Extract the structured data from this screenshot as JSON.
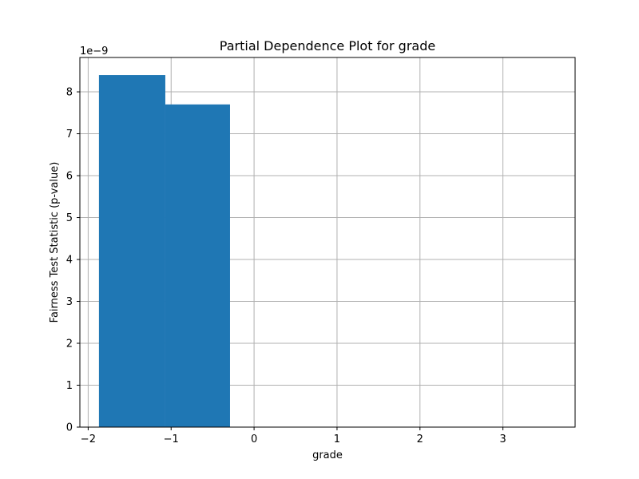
{
  "chart_data": {
    "type": "bar",
    "title": "Partial Dependence Plot for grade",
    "xlabel": "grade",
    "ylabel": "Fairness Test Statistic (p-value)",
    "y_scale_label": "1e−9",
    "xlim": [
      -2.1,
      3.87
    ],
    "ylim": [
      0,
      8.82
    ],
    "grid": true,
    "legend": "none",
    "bar_color": "#1f77b4",
    "x_ticks": [
      {
        "value": -2,
        "label": "−2"
      },
      {
        "value": -1,
        "label": "−1"
      },
      {
        "value": 0,
        "label": "0"
      },
      {
        "value": 1,
        "label": "1"
      },
      {
        "value": 2,
        "label": "2"
      },
      {
        "value": 3,
        "label": "3"
      }
    ],
    "y_ticks": [
      {
        "value": 0,
        "label": "0"
      },
      {
        "value": 1,
        "label": "1"
      },
      {
        "value": 2,
        "label": "2"
      },
      {
        "value": 3,
        "label": "3"
      },
      {
        "value": 4,
        "label": "4"
      },
      {
        "value": 5,
        "label": "5"
      },
      {
        "value": 6,
        "label": "6"
      },
      {
        "value": 7,
        "label": "7"
      },
      {
        "value": 8,
        "label": "8"
      }
    ],
    "bars": [
      {
        "x0": -1.87,
        "x1": -1.07,
        "value": 8.4
      },
      {
        "x0": -1.07,
        "x1": -0.29,
        "value": 7.7
      },
      {
        "x0": -0.29,
        "x1": 0.5,
        "value": 0
      },
      {
        "x0": 0.5,
        "x1": 1.28,
        "value": 0
      },
      {
        "x0": 1.28,
        "x1": 2.07,
        "value": 0
      },
      {
        "x0": 2.07,
        "x1": 2.85,
        "value": 0
      },
      {
        "x0": 2.85,
        "x1": 3.63,
        "value": 0
      }
    ]
  }
}
